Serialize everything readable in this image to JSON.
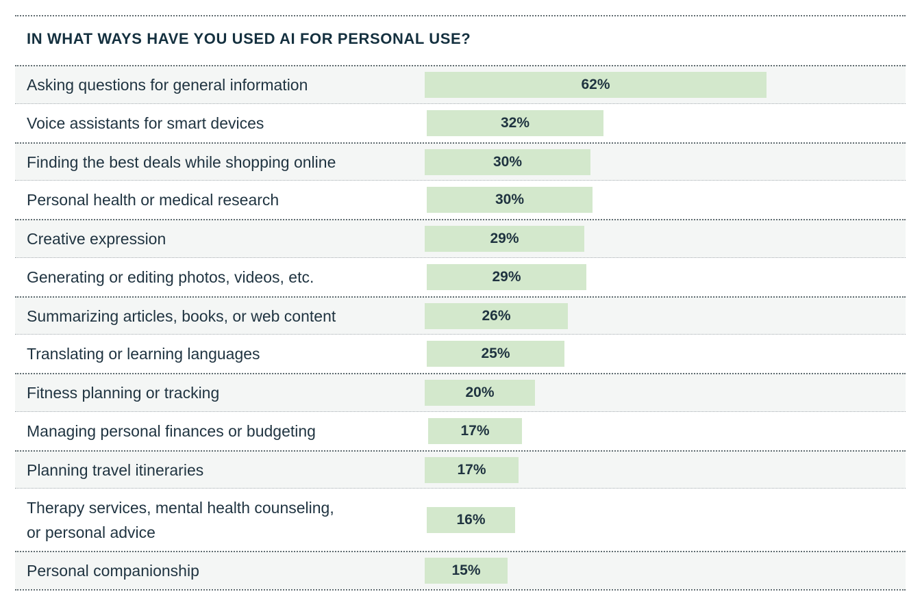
{
  "chart_data": {
    "type": "bar",
    "orientation": "horizontal",
    "title": "IN WHAT WAYS HAVE YOU USED AI FOR PERSONAL USE?",
    "categories": [
      "Asking questions for general information",
      "Voice assistants for smart devices",
      "Finding the best deals while shopping online",
      "Personal health or medical research",
      "Creative expression",
      "Generating or editing photos, videos, etc.",
      "Summarizing articles, books, or web content",
      "Translating or learning languages",
      "Fitness planning or tracking",
      "Managing personal finances or budgeting",
      "Planning travel itineraries",
      "Therapy services, mental health counseling,\nor personal advice",
      "Personal companionship"
    ],
    "values": [
      62,
      32,
      30,
      30,
      29,
      29,
      26,
      25,
      20,
      17,
      17,
      16,
      15
    ],
    "value_labels": [
      "62%",
      "32%",
      "30%",
      "30%",
      "29%",
      "29%",
      "26%",
      "25%",
      "20%",
      "17%",
      "17%",
      "16%",
      "15%"
    ],
    "unit": "%",
    "xlim": [
      0,
      100
    ],
    "xlabel": "",
    "ylabel": "",
    "grid": false,
    "legend": "none",
    "bar_color": "#d3e8cc",
    "alt_row_color": "#f4f6f5",
    "text_color": "#1f3340"
  }
}
